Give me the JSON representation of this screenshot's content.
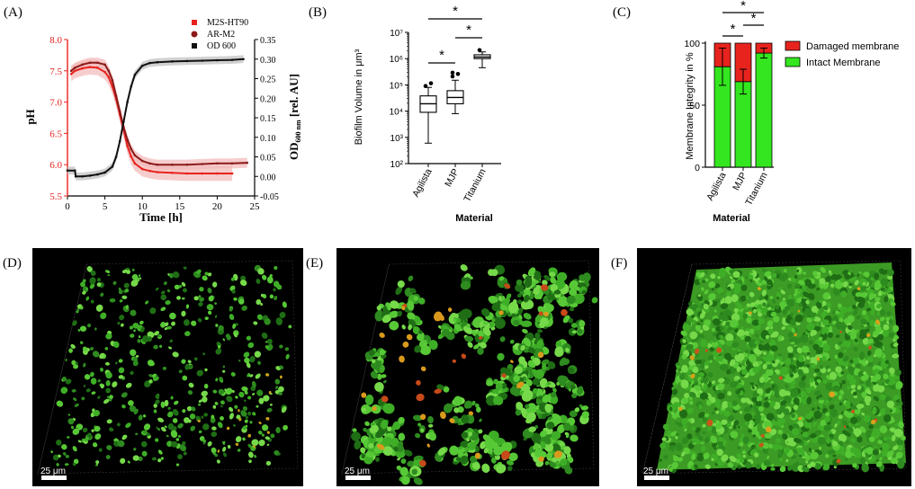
{
  "panels": {
    "a": "(A)",
    "b": "(B)",
    "c": "(C)",
    "d": "(D)",
    "e": "(E)",
    "f": "(F)"
  },
  "scale_bar_label": "25 μm",
  "colors": {
    "m2s": "#e8231e",
    "arm2": "#8b1a1a",
    "od": "#111111",
    "band_red": "#f2b8b8",
    "band_grey": "#bdbdbd",
    "damaged": "#e8231e",
    "intact": "#33e61f"
  },
  "chart_data": [
    {
      "type": "line",
      "panel": "A",
      "xlabel": "Time [h]",
      "ylabel": "pH",
      "y2label_parts": [
        "OD",
        "600 nm",
        " [rel. AU]"
      ],
      "xlim": [
        0,
        25
      ],
      "ylim": [
        5.5,
        8.0
      ],
      "y2lim": [
        -0.05,
        0.35
      ],
      "xticks": [
        "0",
        "5",
        "10",
        "15",
        "20",
        "25"
      ],
      "yticks": [
        "5.5",
        "6.0",
        "6.5",
        "7.0",
        "7.5",
        "8.0"
      ],
      "y2ticks": [
        "-0.05",
        "0.00",
        "0.05",
        "0.10",
        "0.15",
        "0.20",
        "0.25",
        "0.30",
        "0.35"
      ],
      "legend": [
        "M2S-HT90",
        "AR-M2",
        "OD 600"
      ],
      "series": [
        {
          "name": "M2S-HT90",
          "axis": "left",
          "x": [
            0.5,
            1,
            2,
            3,
            4,
            5,
            5.5,
            6,
            6.5,
            7,
            7.5,
            8,
            8.5,
            9,
            10,
            11,
            12,
            14,
            16,
            18,
            20,
            22
          ],
          "y": [
            7.45,
            7.5,
            7.54,
            7.56,
            7.55,
            7.48,
            7.4,
            7.25,
            7.05,
            6.8,
            6.55,
            6.3,
            6.13,
            6.02,
            5.93,
            5.9,
            5.88,
            5.87,
            5.86,
            5.86,
            5.86,
            5.86
          ]
        },
        {
          "name": "AR-M2",
          "axis": "left",
          "x": [
            0.5,
            1,
            2,
            3,
            4,
            5,
            5.5,
            6,
            6.5,
            7,
            7.5,
            8,
            8.5,
            9,
            10,
            11,
            12,
            14,
            16,
            18,
            20,
            22,
            24
          ],
          "y": [
            7.5,
            7.55,
            7.6,
            7.63,
            7.63,
            7.6,
            7.5,
            7.35,
            7.1,
            6.85,
            6.6,
            6.4,
            6.25,
            6.15,
            6.06,
            6.02,
            6.0,
            6.0,
            6.0,
            6.01,
            6.02,
            6.02,
            6.03
          ]
        },
        {
          "name": "OD 600",
          "axis": "right",
          "x": [
            0,
            1,
            1.1,
            2,
            3,
            4,
            5,
            6,
            6.5,
            7,
            7.5,
            8,
            8.5,
            9,
            10,
            11,
            12,
            14,
            16,
            18,
            20,
            22,
            23.5
          ],
          "y": [
            0.015,
            0.015,
            0.0,
            0.0,
            0.002,
            0.005,
            0.01,
            0.025,
            0.05,
            0.09,
            0.14,
            0.19,
            0.23,
            0.26,
            0.283,
            0.29,
            0.292,
            0.294,
            0.295,
            0.296,
            0.297,
            0.298,
            0.3
          ]
        }
      ]
    },
    {
      "type": "box",
      "panel": "B",
      "xlabel": "Material",
      "ylabel": "Biofilm Volume in μm³",
      "yscale": "log",
      "ylim": [
        100,
        10000000
      ],
      "yticks": [
        "10²",
        "10³",
        "10⁴",
        "10⁵",
        "10⁶",
        "10⁷"
      ],
      "categories": [
        "Agilista",
        "MJP",
        "Titanium"
      ],
      "boxes": [
        {
          "min": 600,
          "q1": 9000,
          "median": 19000,
          "q3": 38000,
          "max": 80000,
          "outliers": [
            90000,
            115000
          ]
        },
        {
          "min": 8000,
          "q1": 19000,
          "median": 33000,
          "q3": 60000,
          "max": 150000,
          "outliers": [
            210000,
            260000,
            290000
          ]
        },
        {
          "min": 450000,
          "q1": 1000000,
          "median": 1150000,
          "q3": 1400000,
          "max": 1800000,
          "outliers": [
            2100000
          ]
        }
      ],
      "significance": [
        {
          "pair": [
            0,
            1
          ],
          "label": "*"
        },
        {
          "pair": [
            1,
            2
          ],
          "label": "*"
        },
        {
          "pair": [
            0,
            2
          ],
          "label": "*"
        }
      ]
    },
    {
      "type": "bar",
      "stacked": true,
      "panel": "C",
      "xlabel": "Material",
      "ylabel": "Membrane Integrity in %",
      "ylim": [
        0,
        100
      ],
      "yticks": [
        "0",
        "50",
        "100"
      ],
      "categories": [
        "Agilista",
        "MJP",
        "Titanium"
      ],
      "series": [
        {
          "name": "Intact Membrane",
          "values": [
            81,
            69,
            92
          ],
          "err": [
            15,
            10,
            4
          ]
        },
        {
          "name": "Damaged membrane",
          "values": [
            19,
            31,
            8
          ]
        }
      ],
      "legend": [
        "Damaged membrane",
        "Intact Membrane"
      ],
      "significance": [
        {
          "pair": [
            0,
            1
          ],
          "label": "*"
        },
        {
          "pair": [
            1,
            2
          ],
          "label": "*"
        },
        {
          "pair": [
            0,
            2
          ],
          "label": "*"
        }
      ]
    }
  ],
  "micrographs": [
    {
      "panel": "D",
      "density": "sparse"
    },
    {
      "panel": "E",
      "density": "clustered"
    },
    {
      "panel": "F",
      "density": "confluent"
    }
  ]
}
